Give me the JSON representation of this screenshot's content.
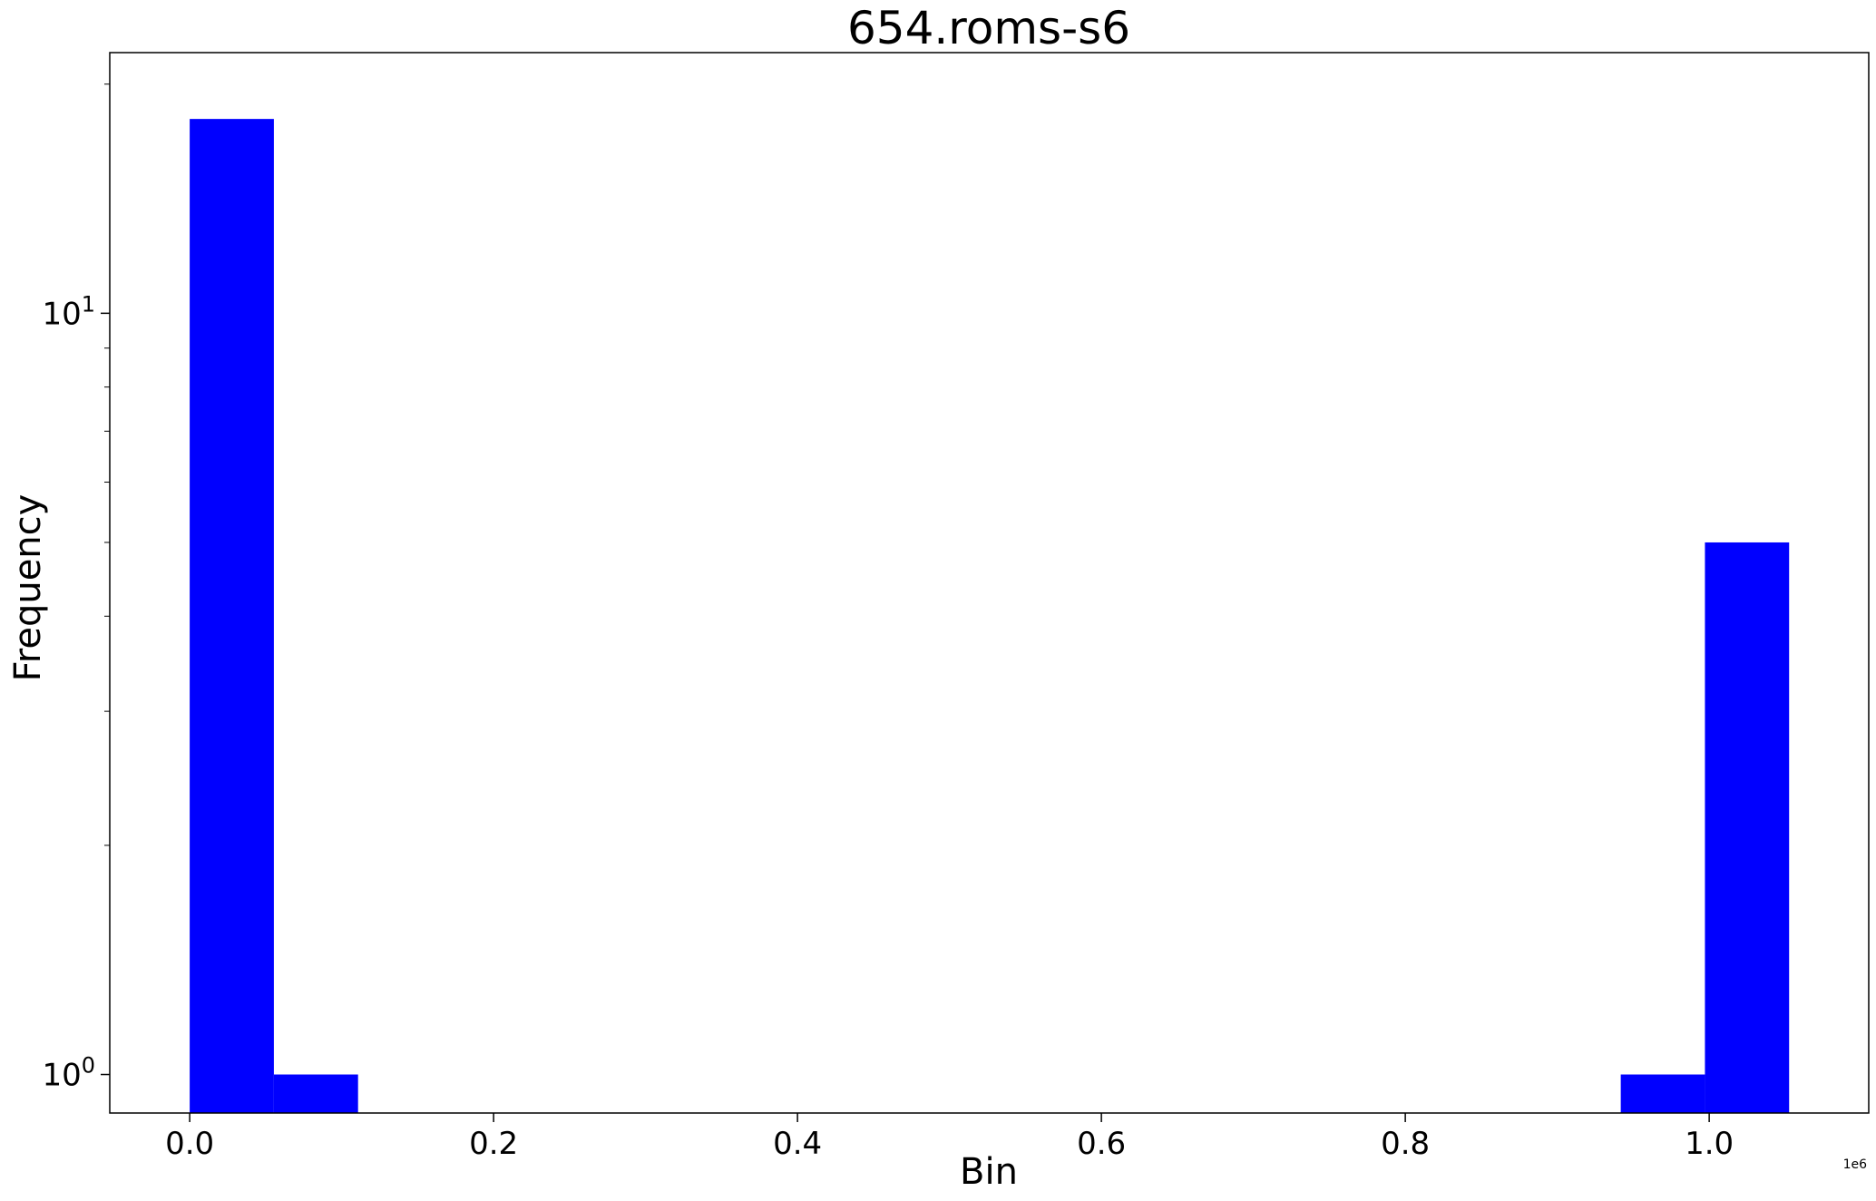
{
  "chart_data": {
    "type": "bar",
    "title": "654.roms-s6",
    "xlabel": "Bin",
    "ylabel": "Frequency",
    "x_offset_label": "1e6",
    "y_scale": "log",
    "x_scale_factor": 1000000,
    "xlim": [
      -52600,
      1105000
    ],
    "ylim": [
      0.89,
      22
    ],
    "bin_width": 55400,
    "bars": [
      {
        "x_start": 0,
        "count": 18
      },
      {
        "x_start": 55400,
        "count": 1
      },
      {
        "x_start": 941800,
        "count": 1
      },
      {
        "x_start": 997200,
        "count": 5
      }
    ],
    "x_ticks": [
      {
        "value": 0,
        "label": "0.0"
      },
      {
        "value": 200000,
        "label": "0.2"
      },
      {
        "value": 400000,
        "label": "0.4"
      },
      {
        "value": 600000,
        "label": "0.6"
      },
      {
        "value": 800000,
        "label": "0.8"
      },
      {
        "value": 1000000,
        "label": "1.0"
      }
    ],
    "y_major_ticks": [
      {
        "value": 1,
        "base": "10",
        "exp": "0"
      },
      {
        "value": 10,
        "base": "10",
        "exp": "1"
      }
    ],
    "y_minor_ticks": [
      2,
      3,
      4,
      5,
      6,
      7,
      8,
      9,
      20
    ],
    "bar_color": "#0000ff",
    "grid": false,
    "legend": "none"
  }
}
